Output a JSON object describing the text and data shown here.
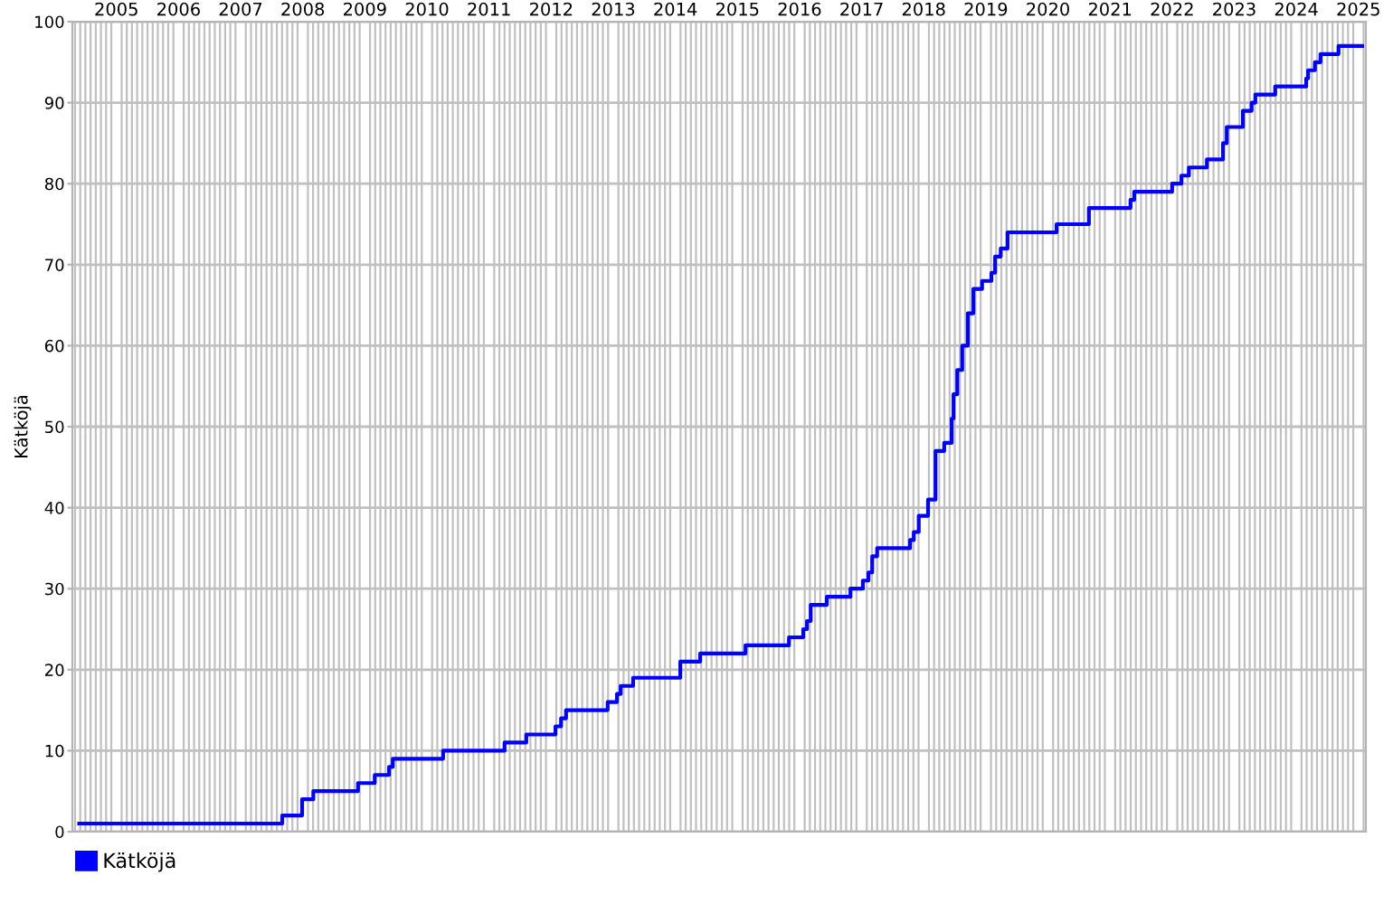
{
  "chart_data": {
    "type": "step",
    "ylabel": "Kätköjä",
    "x": [
      2004.4,
      2007.67,
      2007.99,
      2008.17,
      2008.89,
      2009.16,
      2009.39,
      2009.45,
      2010.26,
      2011.25,
      2011.6,
      2012.07,
      2012.16,
      2012.24,
      2012.91,
      2013.06,
      2013.12,
      2013.32,
      2014.08,
      2014.4,
      2015.13,
      2015.83,
      2016.06,
      2016.12,
      2016.18,
      2016.44,
      2016.82,
      2017.02,
      2017.11,
      2017.17,
      2017.25,
      2017.78,
      2017.84,
      2017.92,
      2018.07,
      2018.19,
      2018.33,
      2018.45,
      2018.48,
      2018.54,
      2018.62,
      2018.71,
      2018.8,
      2018.94,
      2019.09,
      2019.15,
      2019.24,
      2019.35,
      2020.14,
      2020.66,
      2021.33,
      2021.39,
      2022.0,
      2022.15,
      2022.27,
      2022.56,
      2022.82,
      2022.88,
      2023.14,
      2023.28,
      2023.34,
      2023.66,
      2024.16,
      2024.19,
      2024.3,
      2024.39,
      2024.68,
      2025.06
    ],
    "series": [
      {
        "name": "Kätköjä",
        "color": "#0000ff",
        "values": [
          1,
          1,
          2,
          4,
          5,
          6,
          7,
          8,
          9,
          10,
          11,
          12,
          13,
          14,
          15,
          16,
          17,
          18,
          19,
          21,
          22,
          23,
          24,
          25,
          26,
          28,
          29,
          30,
          31,
          32,
          34,
          35,
          36,
          37,
          39,
          41,
          47,
          48,
          51,
          54,
          57,
          60,
          64,
          67,
          68,
          69,
          71,
          72,
          74,
          75,
          77,
          78,
          79,
          80,
          81,
          82,
          83,
          85,
          87,
          89,
          90,
          91,
          92,
          93,
          94,
          95,
          96,
          97
        ]
      }
    ],
    "xlim": [
      2004.29,
      2025.12
    ],
    "xticks": [
      2005,
      2006,
      2007,
      2008,
      2009,
      2010,
      2011,
      2012,
      2013,
      2014,
      2015,
      2016,
      2017,
      2018,
      2019,
      2020,
      2021,
      2022,
      2023,
      2024,
      2025
    ],
    "ylim": [
      0,
      100
    ],
    "yticks": [
      0,
      10,
      20,
      30,
      40,
      50,
      60,
      70,
      80,
      90,
      100
    ],
    "grid": true,
    "legend": "bottom left",
    "marker": "none",
    "line_style": "solid"
  }
}
